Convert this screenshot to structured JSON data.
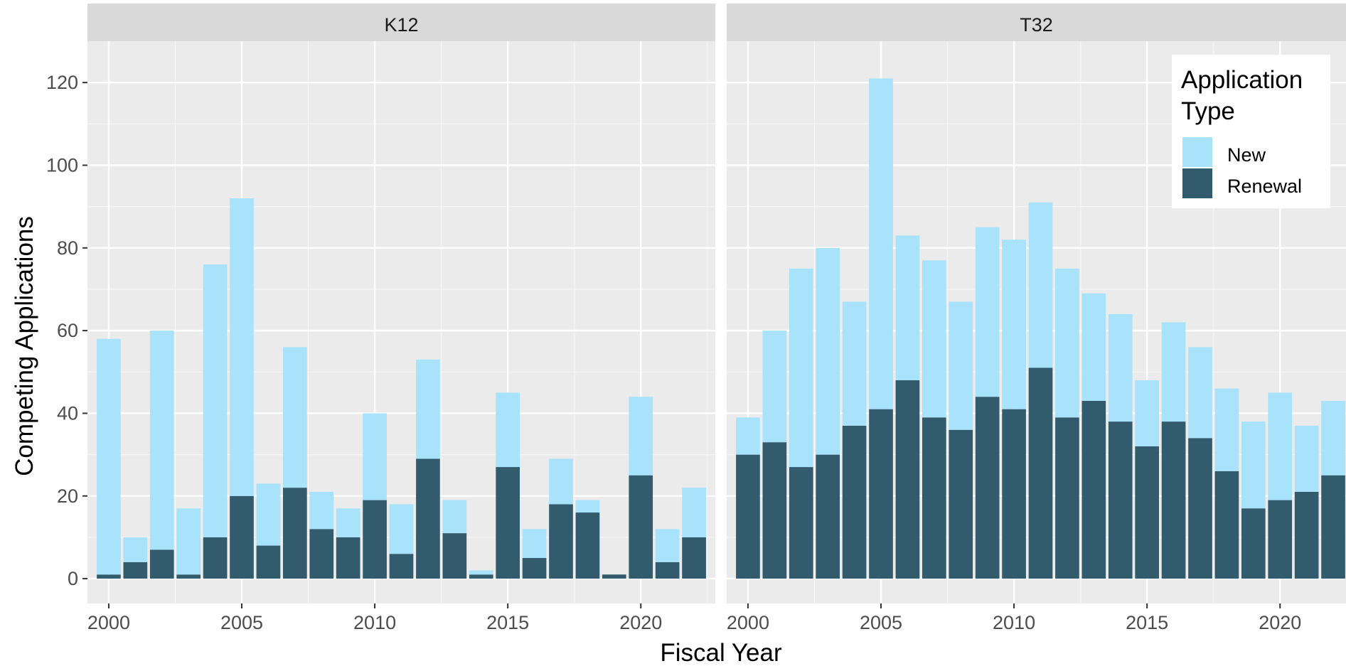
{
  "chart_data": {
    "type": "bar",
    "stacked": true,
    "xlabel": "Fiscal Year",
    "ylabel": "Competing Applications",
    "ylim": [
      -6,
      130
    ],
    "xlim": [
      1999.2,
      2022.8
    ],
    "x_ticks": [
      2000,
      2005,
      2010,
      2015,
      2020
    ],
    "y_ticks": [
      0,
      20,
      40,
      60,
      80,
      100,
      120
    ],
    "grid": true,
    "legend": {
      "title_lines": [
        "Application",
        "Type"
      ],
      "placement": "top-right",
      "entries": [
        {
          "name": "New",
          "color": "#a9e2fb"
        },
        {
          "name": "Renewal",
          "color": "#335b6e"
        }
      ]
    },
    "colors": {
      "panel_background": "#ebebeb",
      "strip_background": "#d9d9d9",
      "grid_major": "#ffffff",
      "new": "#a9e2fb",
      "renewal": "#335b6e"
    },
    "x": [
      2000,
      2001,
      2002,
      2003,
      2004,
      2005,
      2006,
      2007,
      2008,
      2009,
      2010,
      2011,
      2012,
      2013,
      2014,
      2015,
      2016,
      2017,
      2018,
      2019,
      2020,
      2021,
      2022
    ],
    "panels": [
      {
        "label": "K12",
        "series": [
          {
            "name": "Renewal",
            "values": [
              1,
              4,
              7,
              1,
              10,
              20,
              8,
              22,
              12,
              10,
              19,
              6,
              29,
              11,
              1,
              27,
              5,
              18,
              16,
              1,
              25,
              4,
              10
            ]
          },
          {
            "name": "New",
            "values": [
              57,
              6,
              53,
              16,
              66,
              72,
              15,
              34,
              9,
              7,
              21,
              12,
              24,
              8,
              1,
              18,
              7,
              11,
              3,
              0,
              19,
              8,
              12
            ]
          }
        ],
        "totals": [
          58,
          10,
          60,
          17,
          76,
          92,
          23,
          56,
          21,
          17,
          40,
          18,
          53,
          19,
          2,
          45,
          12,
          29,
          19,
          1,
          44,
          12,
          22
        ]
      },
      {
        "label": "T32",
        "series": [
          {
            "name": "Renewal",
            "values": [
              30,
              33,
              27,
              30,
              37,
              41,
              48,
              39,
              36,
              44,
              41,
              51,
              39,
              43,
              38,
              32,
              38,
              34,
              26,
              17,
              19,
              21,
              25
            ]
          },
          {
            "name": "New",
            "values": [
              9,
              27,
              48,
              50,
              30,
              80,
              35,
              38,
              31,
              41,
              41,
              40,
              36,
              26,
              26,
              16,
              24,
              22,
              20,
              21,
              26,
              16,
              18
            ]
          }
        ],
        "totals": [
          39,
          60,
          75,
          80,
          67,
          121,
          83,
          77,
          67,
          85,
          82,
          91,
          75,
          69,
          64,
          48,
          62,
          56,
          46,
          38,
          45,
          37,
          43
        ]
      }
    ]
  }
}
